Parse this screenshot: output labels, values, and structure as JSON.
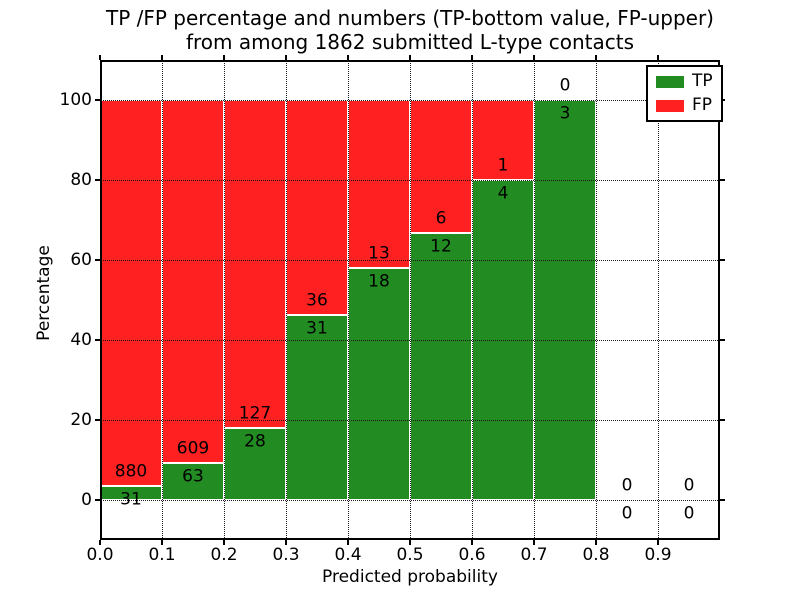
{
  "chart_data": {
    "type": "bar",
    "stacked_percentage": true,
    "title": "TP /FP percentage and numbers (TP-bottom value, FP-upper) from among 1862 submitted L-type contacts",
    "title_line1": "TP /FP percentage and numbers (TP-bottom value, FP-upper)",
    "title_line2": "from among 1862 submitted L-type contacts",
    "xlabel": "Predicted probability",
    "ylabel": "Percentage",
    "total_contacts": 1862,
    "xlim": [
      0,
      1.0
    ],
    "ylim": [
      -10,
      110
    ],
    "grid": "dotted",
    "bin_width": 0.1,
    "bins": [
      {
        "range": [
          0.0,
          0.1
        ],
        "tp": 31,
        "fp": 880
      },
      {
        "range": [
          0.1,
          0.2
        ],
        "tp": 63,
        "fp": 609
      },
      {
        "range": [
          0.2,
          0.3
        ],
        "tp": 28,
        "fp": 127
      },
      {
        "range": [
          0.3,
          0.4
        ],
        "tp": 31,
        "fp": 36
      },
      {
        "range": [
          0.4,
          0.5
        ],
        "tp": 18,
        "fp": 13
      },
      {
        "range": [
          0.5,
          0.6
        ],
        "tp": 12,
        "fp": 6
      },
      {
        "range": [
          0.6,
          0.7
        ],
        "tp": 4,
        "fp": 1
      },
      {
        "range": [
          0.7,
          0.8
        ],
        "tp": 3,
        "fp": 0
      },
      {
        "range": [
          0.8,
          0.9
        ],
        "tp": 0,
        "fp": 0
      },
      {
        "range": [
          0.9,
          1.0
        ],
        "tp": 0,
        "fp": 0
      }
    ],
    "x_ticks": [
      {
        "v": 0.0,
        "label": "0.0"
      },
      {
        "v": 0.1,
        "label": "0.1"
      },
      {
        "v": 0.2,
        "label": "0.2"
      },
      {
        "v": 0.3,
        "label": "0.3"
      },
      {
        "v": 0.4,
        "label": "0.4"
      },
      {
        "v": 0.5,
        "label": "0.5"
      },
      {
        "v": 0.6,
        "label": "0.6"
      },
      {
        "v": 0.7,
        "label": "0.7"
      },
      {
        "v": 0.8,
        "label": "0.8"
      },
      {
        "v": 0.9,
        "label": "0.9"
      }
    ],
    "y_ticks": [
      {
        "v": 0,
        "label": "0"
      },
      {
        "v": 20,
        "label": "20"
      },
      {
        "v": 40,
        "label": "40"
      },
      {
        "v": 60,
        "label": "60"
      },
      {
        "v": 80,
        "label": "80"
      },
      {
        "v": 100,
        "label": "100"
      }
    ],
    "legend": {
      "position": "upper right",
      "entries": [
        {
          "label": "TP",
          "color": "#228b22"
        },
        {
          "label": "FP",
          "color": "#ff2121"
        }
      ]
    }
  }
}
